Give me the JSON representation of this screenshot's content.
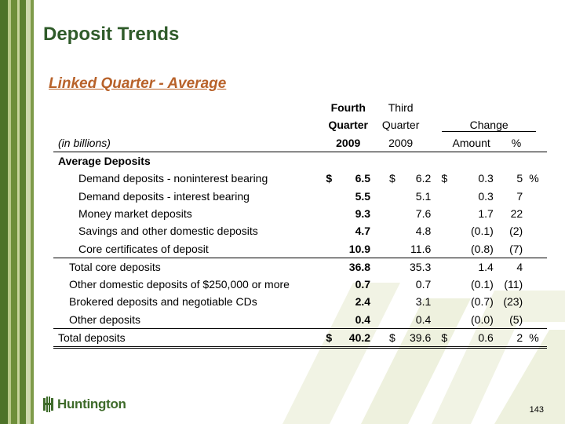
{
  "title": "Deposit Trends",
  "subtitle": "Linked Quarter - Average",
  "header": {
    "fourth_l1": "Fourth",
    "fourth_l2": "Quarter",
    "fourth_year": "2009",
    "third_l1": "Third",
    "third_l2": "Quarter",
    "third_year": "2009",
    "change": "Change",
    "amount": "Amount",
    "pct": "%",
    "units": "(in billions)"
  },
  "section": "Average Deposits",
  "rows": [
    {
      "label": "Demand deposits - noninterest bearing",
      "s1": "$",
      "q4": "6.5",
      "s2": "$",
      "q3": "6.2",
      "s3": "$",
      "amt": "0.3",
      "pct": "5",
      "ps": "%"
    },
    {
      "label": "Demand deposits - interest bearing",
      "s1": "",
      "q4": "5.5",
      "s2": "",
      "q3": "5.1",
      "s3": "",
      "amt": "0.3",
      "pct": "7",
      "ps": ""
    },
    {
      "label": "Money market deposits",
      "s1": "",
      "q4": "9.3",
      "s2": "",
      "q3": "7.6",
      "s3": "",
      "amt": "1.7",
      "pct": "22",
      "ps": ""
    },
    {
      "label": "Savings and other domestic deposits",
      "s1": "",
      "q4": "4.7",
      "s2": "",
      "q3": "4.8",
      "s3": "",
      "amt": "(0.1)",
      "pct": "(2)",
      "ps": ""
    },
    {
      "label": "Core certificates of deposit",
      "s1": "",
      "q4": "10.9",
      "s2": "",
      "q3": "11.6",
      "s3": "",
      "amt": "(0.8)",
      "pct": "(7)",
      "ps": ""
    },
    {
      "label": "Total core deposits",
      "s1": "",
      "q4": "36.8",
      "s2": "",
      "q3": "35.3",
      "s3": "",
      "amt": "1.4",
      "pct": "4",
      "ps": ""
    },
    {
      "label": "Other domestic deposits of $250,000 or more",
      "s1": "",
      "q4": "0.7",
      "s2": "",
      "q3": "0.7",
      "s3": "",
      "amt": "(0.1)",
      "pct": "(11)",
      "ps": ""
    },
    {
      "label": "Brokered deposits and negotiable CDs",
      "s1": "",
      "q4": "2.4",
      "s2": "",
      "q3": "3.1",
      "s3": "",
      "amt": "(0.7)",
      "pct": "(23)",
      "ps": ""
    },
    {
      "label": "Other deposits",
      "s1": "",
      "q4": "0.4",
      "s2": "",
      "q3": "0.4",
      "s3": "",
      "amt": "(0.0)",
      "pct": "(5)",
      "ps": ""
    },
    {
      "label": "Total deposits",
      "s1": "$",
      "q4": "40.2",
      "s2": "$",
      "q3": "39.6",
      "s3": "$",
      "amt": "0.6",
      "pct": "2",
      "ps": "%"
    }
  ],
  "logo_text": "Huntington",
  "page_number": "143"
}
